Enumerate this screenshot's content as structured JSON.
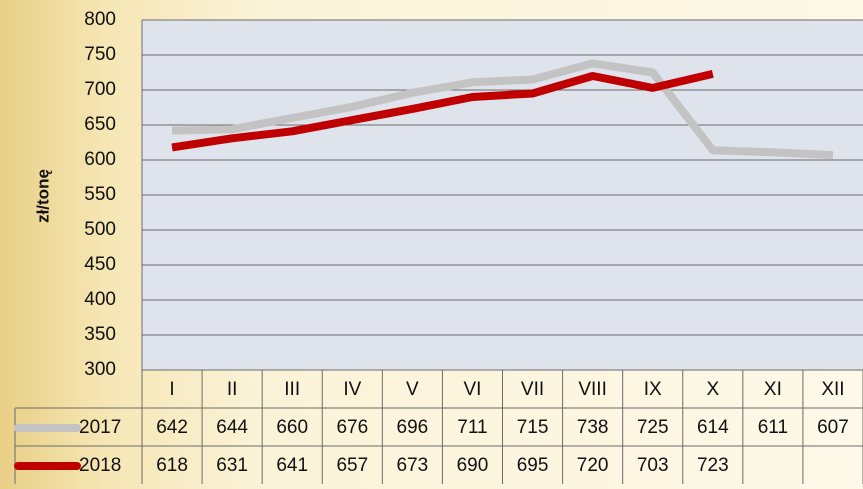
{
  "chart_data": {
    "type": "line",
    "y_label": "zł/tonę",
    "categories": [
      "I",
      "II",
      "III",
      "IV",
      "V",
      "VI",
      "VII",
      "VIII",
      "IX",
      "X",
      "XI",
      "XII"
    ],
    "series": [
      {
        "name": "2017",
        "color": "#c3c3c3",
        "values": [
          642,
          644,
          660,
          676,
          696,
          711,
          715,
          738,
          725,
          614,
          611,
          607
        ]
      },
      {
        "name": "2018",
        "color": "#c00000",
        "values": [
          618,
          631,
          641,
          657,
          673,
          690,
          695,
          720,
          703,
          723,
          null,
          null
        ]
      }
    ],
    "ylim": [
      300,
      800
    ],
    "yticks": [
      300,
      350,
      400,
      450,
      500,
      550,
      600,
      650,
      700,
      750,
      800
    ],
    "grid": true
  }
}
